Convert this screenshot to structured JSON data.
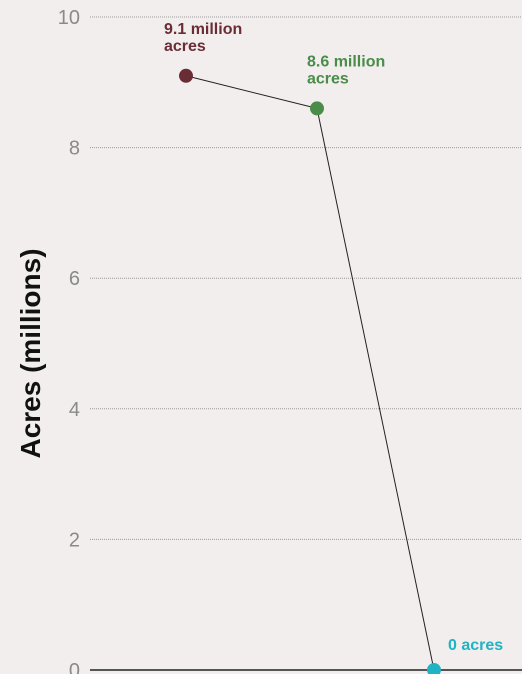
{
  "chart_data": {
    "type": "line",
    "ylabel": "Acres (millions)",
    "ylim": [
      0,
      10
    ],
    "yticks": [
      "0",
      "2",
      "4",
      "6",
      "8",
      "10"
    ],
    "grid": true,
    "x": [
      1,
      2,
      3
    ],
    "series": [
      {
        "values": [
          9.1,
          8.6,
          0
        ],
        "colors": [
          "#6b2d35",
          "#4a8c4a",
          "#1fb3c4"
        ],
        "labels": [
          [
            "9.1 million",
            "acres"
          ],
          [
            "8.6 million",
            "acres"
          ],
          [
            "0 acres"
          ]
        ]
      }
    ],
    "line_color": "#222222",
    "gridline_color": "#9a9a9a",
    "axis_color": "#555555"
  }
}
